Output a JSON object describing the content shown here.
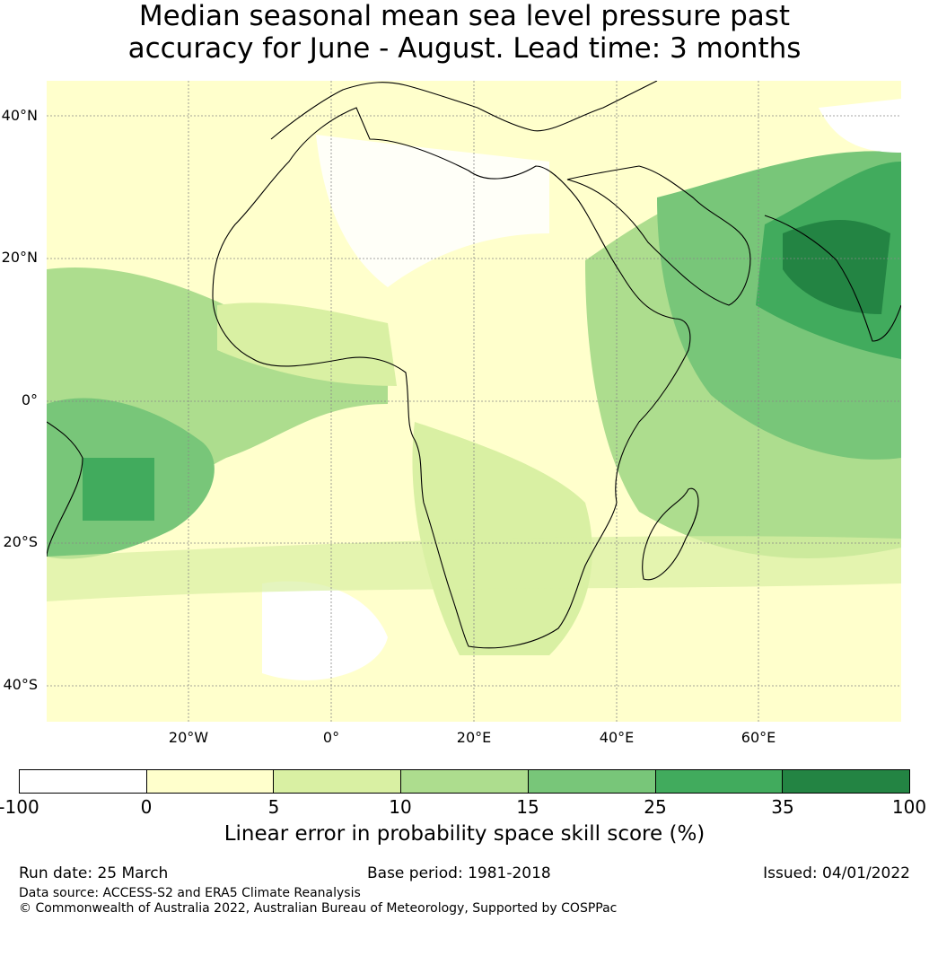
{
  "title": {
    "line1": "Median seasonal mean sea level pressure past",
    "line2": "accuracy for June - August. Lead time: 3 months"
  },
  "map": {
    "lat_labels": [
      "40°N",
      "20°N",
      "0°",
      "20°S",
      "40°S"
    ],
    "lon_labels": [
      "20°W",
      "0°",
      "20°E",
      "40°E",
      "60°E"
    ]
  },
  "colorbar": {
    "ticks": [
      "-100",
      "0",
      "5",
      "10",
      "15",
      "25",
      "35",
      "100"
    ],
    "colors": [
      "#ffffff",
      "#ffffcc",
      "#d9f0a3",
      "#addd8e",
      "#78c679",
      "#41ab5d",
      "#238443"
    ],
    "label": "Linear error in probability space skill score (%)"
  },
  "footer": {
    "run_date": "Run date: 25 March",
    "base_period": "Base period: 1981-2018",
    "issued": "Issued: 04/01/2022",
    "data_source": "Data source: ACCESS-S2 and ERA5 Climate Reanalysis",
    "copyright": "© Commonwealth of Australia 2022, Australian Bureau of Meteorology, Supported by COSPPac"
  }
}
